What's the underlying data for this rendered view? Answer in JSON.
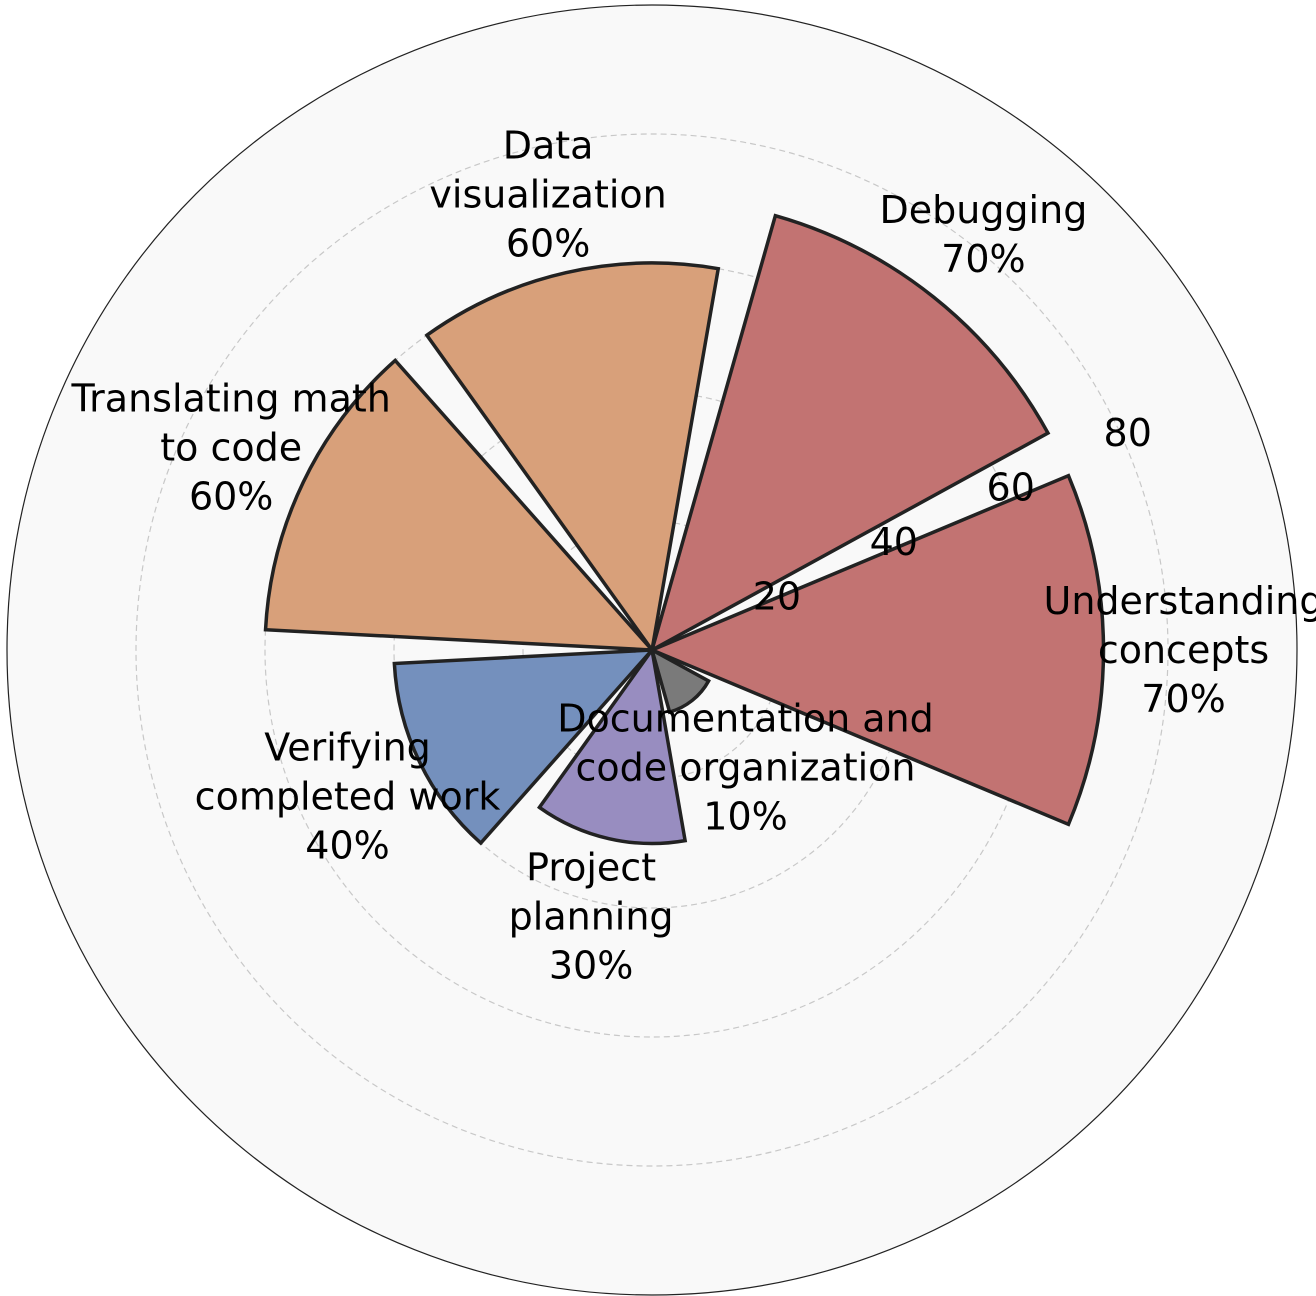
{
  "chart_data": {
    "type": "polar-bar",
    "title": "",
    "radial_ticks": [
      20,
      40,
      60,
      80
    ],
    "rmax": 100,
    "grid": true,
    "value_suffix": "%",
    "categories": [
      {
        "label": [
          "Understanding",
          "concepts"
        ],
        "value": 70,
        "color": "#c27372"
      },
      {
        "label": [
          "Debugging"
        ],
        "value": 70,
        "color": "#c27372"
      },
      {
        "label": [
          "Data",
          "visualization"
        ],
        "value": 60,
        "color": "#d8a07a"
      },
      {
        "label": [
          "Translating math",
          "to code"
        ],
        "value": 60,
        "color": "#d8a07a"
      },
      {
        "label": [
          "Verifying",
          "completed work"
        ],
        "value": 40,
        "color": "#7490bd"
      },
      {
        "label": [
          "Project",
          "planning"
        ],
        "value": 30,
        "color": "#988dc0"
      },
      {
        "label": [
          "Documentation and",
          "code organization"
        ],
        "value": 10,
        "color": "#7a7a7a"
      }
    ]
  }
}
